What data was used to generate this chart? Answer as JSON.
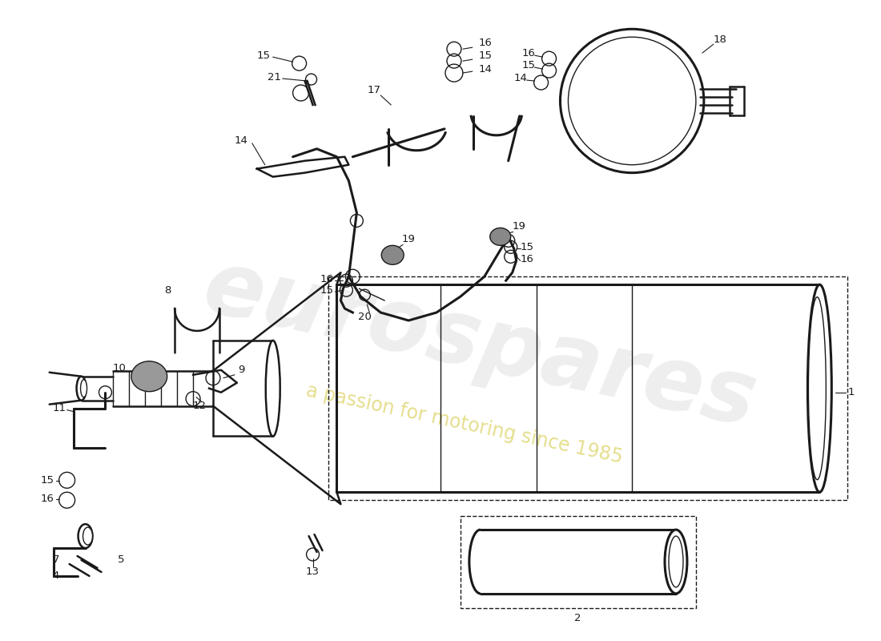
{
  "bg_color": "#ffffff",
  "line_color": "#1a1a1a",
  "lw_main": 1.8,
  "lw_thin": 1.0,
  "lw_thick": 2.2,
  "watermark1": "eurospares",
  "watermark2": "a passion for motoring since 1985",
  "wm_color1": "#c8c8c8",
  "wm_color2": "#d4c840",
  "fig_w": 11.0,
  "fig_h": 8.0,
  "dpi": 100
}
